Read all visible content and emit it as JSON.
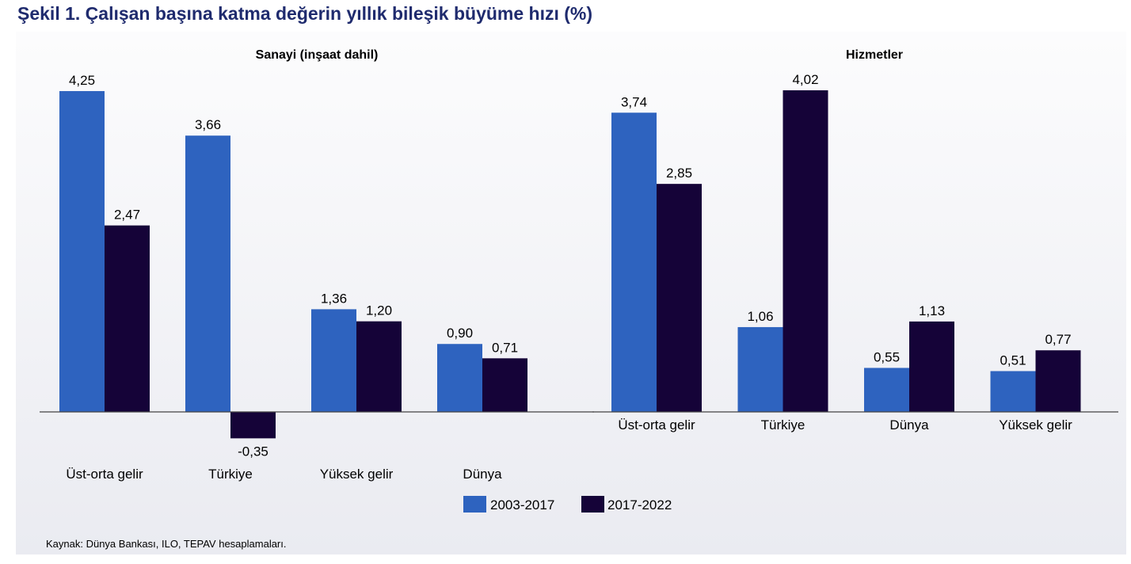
{
  "figure_title": "Şekil 1. Çalışan başına katma değerin yıllık bileşik büyüme hızı (%)",
  "source_note": "Kaynak: Dünya Bankası, ILO, TEPAV hesaplamaları.",
  "colors": {
    "series_2003_2017": "#2e63bf",
    "series_2017_2022": "#150338"
  },
  "legend": [
    "2003-2017",
    "2017-2022"
  ],
  "chart_data": [
    {
      "type": "bar",
      "title": "Sanayi (inşaat dahil)",
      "categories": [
        "Üst-orta gelir",
        "Türkiye",
        "Yüksek gelir",
        "Dünya"
      ],
      "series": [
        {
          "name": "2003-2017",
          "values": [
            4.25,
            3.66,
            1.36,
            0.9
          ],
          "labels": [
            "4,25",
            "3,66",
            "1,36",
            "0,90"
          ]
        },
        {
          "name": "2017-2022",
          "values": [
            2.47,
            -0.35,
            1.2,
            0.71
          ],
          "labels": [
            "2,47",
            "-0,35",
            "1,20",
            "0,71"
          ]
        }
      ]
    },
    {
      "type": "bar",
      "title": "Hizmetler",
      "categories": [
        "Üst-orta gelir",
        "Türkiye",
        "Dünya",
        "Yüksek gelir"
      ],
      "series": [
        {
          "name": "2003-2017",
          "values": [
            3.74,
            1.06,
            0.55,
            0.51
          ],
          "labels": [
            "3,74",
            "1,06",
            "0,55",
            "0,51"
          ]
        },
        {
          "name": "2017-2022",
          "values": [
            2.85,
            4.02,
            1.13,
            0.77
          ],
          "labels": [
            "2,85",
            "4,02",
            "1,13",
            "0,77"
          ]
        }
      ]
    }
  ]
}
